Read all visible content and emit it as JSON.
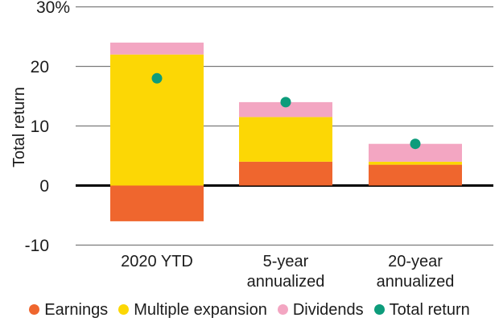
{
  "chart_data": {
    "type": "bar",
    "subtype": "stacked-bars-with-total-points",
    "ylabel": "Total return",
    "ylim": [
      -10,
      30
    ],
    "grid": true,
    "legend_position": "bottom",
    "yticks": [
      {
        "value": 30,
        "label": "30%"
      },
      {
        "value": 20,
        "label": "20"
      },
      {
        "value": 10,
        "label": "10"
      },
      {
        "value": 0,
        "label": "0"
      },
      {
        "value": -10,
        "label": "-10"
      }
    ],
    "categories": [
      "2020 YTD",
      "5-year\nannualized",
      "20-year\nannualized"
    ],
    "series": [
      {
        "name": "Earnings",
        "color": "#EF662E",
        "values": [
          -6,
          4,
          3.5
        ]
      },
      {
        "name": "Multiple expansion",
        "color": "#FCD705",
        "values": [
          22,
          7.5,
          0.5
        ]
      },
      {
        "name": "Dividends",
        "color": "#F3A6C2",
        "values": [
          2,
          2.5,
          3
        ]
      }
    ],
    "points_series": {
      "name": "Total return",
      "color": "#0D9C7B",
      "values": [
        18,
        14,
        7
      ]
    },
    "colors": {
      "grid_line": "#7B7B7B",
      "zero_line": "#000000",
      "text": "#1c1c1c"
    }
  }
}
